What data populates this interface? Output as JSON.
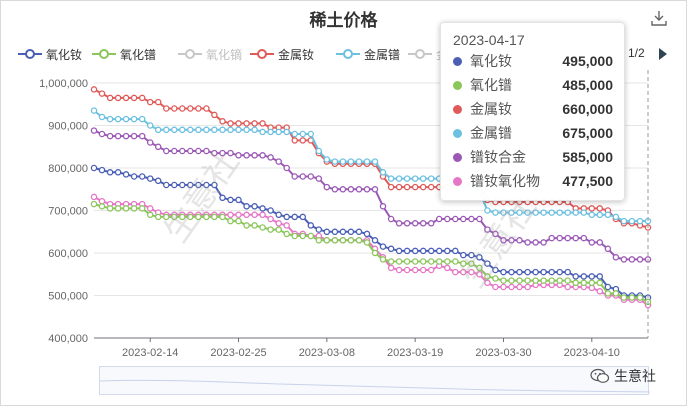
{
  "page": {
    "title": "稀土价格",
    "pager": "1/2",
    "brand": "生意社",
    "watermark": "生意社",
    "icons": {
      "download": "download-icon",
      "next": "triangle-right-icon",
      "brand": "wechat-icon"
    }
  },
  "legend": [
    {
      "name": "氧化钕",
      "color": "#4a5fb5",
      "active": true
    },
    {
      "name": "氧化镨",
      "color": "#8bc65a",
      "active": true
    },
    {
      "name": "氧化镝",
      "color": "#c7c7c7",
      "active": false
    },
    {
      "name": "金属钕",
      "color": "#e05a5a",
      "active": true
    },
    {
      "name": "金属镨",
      "color": "#6cc0e0",
      "active": true
    },
    {
      "name": "金",
      "color": "#c7c7c7",
      "active": false
    }
  ],
  "tooltip": {
    "date": "2023-04-17",
    "rows": [
      {
        "name": "氧化钕",
        "value": "495,000",
        "color": "#4a5fb5"
      },
      {
        "name": "氧化镨",
        "value": "485,000",
        "color": "#8bc65a"
      },
      {
        "name": "金属钕",
        "value": "660,000",
        "color": "#e05a5a"
      },
      {
        "name": "金属镨",
        "value": "675,000",
        "color": "#6cc0e0"
      },
      {
        "name": "镨钕合金",
        "value": "585,000",
        "color": "#9b59b6"
      },
      {
        "name": "镨钕氧化物",
        "value": "477,500",
        "color": "#e676c6"
      }
    ]
  },
  "chart_data": {
    "type": "line",
    "title": "稀土价格",
    "x_start": "2023-02-07",
    "x_end": "2023-04-17",
    "xlim": [
      "2023-02-07",
      "2023-04-17"
    ],
    "ylim": [
      400000,
      1000000
    ],
    "yticks": [
      400000,
      500000,
      600000,
      700000,
      800000,
      900000,
      1000000
    ],
    "ytick_labels": [
      "400,000",
      "500,000",
      "600,000",
      "700,000",
      "800,000",
      "900,000",
      "1,000,000"
    ],
    "xticks": [
      "2023-02-14",
      "2023-02-25",
      "2023-03-08",
      "2023-03-19",
      "2023-03-30",
      "2023-04-10"
    ],
    "grid": true,
    "series": [
      {
        "name": "金属钕",
        "color": "#e05a5a",
        "points": [
          [
            "2023-02-07",
            985000
          ],
          [
            "2023-02-08",
            975000
          ],
          [
            "2023-02-09",
            965000
          ],
          [
            "2023-02-13",
            965000
          ],
          [
            "2023-02-14",
            955000
          ],
          [
            "2023-02-15",
            955000
          ],
          [
            "2023-02-16",
            940000
          ],
          [
            "2023-02-21",
            940000
          ],
          [
            "2023-02-22",
            925000
          ],
          [
            "2023-02-23",
            910000
          ],
          [
            "2023-02-24",
            905000
          ],
          [
            "2023-02-28",
            905000
          ],
          [
            "2023-03-01",
            895000
          ],
          [
            "2023-03-03",
            895000
          ],
          [
            "2023-03-04",
            865000
          ],
          [
            "2023-03-06",
            865000
          ],
          [
            "2023-03-07",
            835000
          ],
          [
            "2023-03-08",
            815000
          ],
          [
            "2023-03-09",
            810000
          ],
          [
            "2023-03-14",
            810000
          ],
          [
            "2023-03-15",
            780000
          ],
          [
            "2023-03-16",
            755000
          ],
          [
            "2023-03-23",
            755000
          ],
          [
            "2023-03-24",
            760000
          ],
          [
            "2023-03-27",
            760000
          ],
          [
            "2023-03-28",
            725000
          ],
          [
            "2023-03-29",
            720000
          ],
          [
            "2023-04-07",
            720000
          ],
          [
            "2023-04-08",
            705000
          ],
          [
            "2023-04-12",
            700000
          ],
          [
            "2023-04-13",
            680000
          ],
          [
            "2023-04-14",
            670000
          ],
          [
            "2023-04-16",
            665000
          ],
          [
            "2023-04-17",
            660000
          ]
        ]
      },
      {
        "name": "金属镨",
        "color": "#6cc0e0",
        "points": [
          [
            "2023-02-07",
            935000
          ],
          [
            "2023-02-08",
            920000
          ],
          [
            "2023-02-09",
            915000
          ],
          [
            "2023-02-13",
            915000
          ],
          [
            "2023-02-14",
            900000
          ],
          [
            "2023-02-15",
            890000
          ],
          [
            "2023-02-24",
            890000
          ],
          [
            "2023-02-27",
            890000
          ],
          [
            "2023-02-28",
            885000
          ],
          [
            "2023-03-03",
            885000
          ],
          [
            "2023-03-04",
            880000
          ],
          [
            "2023-03-06",
            880000
          ],
          [
            "2023-03-07",
            840000
          ],
          [
            "2023-03-08",
            820000
          ],
          [
            "2023-03-09",
            815000
          ],
          [
            "2023-03-14",
            815000
          ],
          [
            "2023-03-15",
            790000
          ],
          [
            "2023-03-16",
            775000
          ],
          [
            "2023-03-23",
            775000
          ],
          [
            "2023-03-24",
            760000
          ],
          [
            "2023-03-27",
            745000
          ],
          [
            "2023-03-28",
            700000
          ],
          [
            "2023-03-29",
            695000
          ],
          [
            "2023-04-08",
            695000
          ],
          [
            "2023-04-10",
            690000
          ],
          [
            "2023-04-13",
            685000
          ],
          [
            "2023-04-14",
            675000
          ],
          [
            "2023-04-17",
            675000
          ]
        ]
      },
      {
        "name": "镨钕合金",
        "color": "#9b59b6",
        "points": [
          [
            "2023-02-07",
            888000
          ],
          [
            "2023-02-08",
            880000
          ],
          [
            "2023-02-09",
            875000
          ],
          [
            "2023-02-13",
            875000
          ],
          [
            "2023-02-14",
            860000
          ],
          [
            "2023-02-15",
            850000
          ],
          [
            "2023-02-16",
            840000
          ],
          [
            "2023-02-21",
            840000
          ],
          [
            "2023-02-22",
            835000
          ],
          [
            "2023-02-25",
            830000
          ],
          [
            "2023-02-28",
            830000
          ],
          [
            "2023-03-01",
            825000
          ],
          [
            "2023-03-02",
            815000
          ],
          [
            "2023-03-03",
            800000
          ],
          [
            "2023-03-04",
            780000
          ],
          [
            "2023-03-07",
            775000
          ],
          [
            "2023-03-08",
            755000
          ],
          [
            "2023-03-09",
            750000
          ],
          [
            "2023-03-14",
            750000
          ],
          [
            "2023-03-15",
            710000
          ],
          [
            "2023-03-16",
            680000
          ],
          [
            "2023-03-17",
            670000
          ],
          [
            "2023-03-21",
            670000
          ],
          [
            "2023-03-22",
            680000
          ],
          [
            "2023-03-27",
            680000
          ],
          [
            "2023-03-28",
            655000
          ],
          [
            "2023-03-29",
            645000
          ],
          [
            "2023-03-30",
            630000
          ],
          [
            "2023-04-02",
            625000
          ],
          [
            "2023-04-04",
            625000
          ],
          [
            "2023-04-05",
            635000
          ],
          [
            "2023-04-09",
            635000
          ],
          [
            "2023-04-10",
            625000
          ],
          [
            "2023-04-12",
            610000
          ],
          [
            "2023-04-13",
            590000
          ],
          [
            "2023-04-14",
            585000
          ],
          [
            "2023-04-17",
            585000
          ]
        ]
      },
      {
        "name": "氧化钕",
        "color": "#4a5fb5",
        "points": [
          [
            "2023-02-07",
            800000
          ],
          [
            "2023-02-08",
            795000
          ],
          [
            "2023-02-09",
            790000
          ],
          [
            "2023-02-10",
            790000
          ],
          [
            "2023-02-11",
            785000
          ],
          [
            "2023-02-12",
            780000
          ],
          [
            "2023-02-14",
            775000
          ],
          [
            "2023-02-15",
            770000
          ],
          [
            "2023-02-16",
            760000
          ],
          [
            "2023-02-22",
            760000
          ],
          [
            "2023-02-23",
            730000
          ],
          [
            "2023-02-24",
            725000
          ],
          [
            "2023-02-25",
            725000
          ],
          [
            "2023-02-26",
            710000
          ],
          [
            "2023-02-28",
            705000
          ],
          [
            "2023-03-01",
            700000
          ],
          [
            "2023-03-02",
            690000
          ],
          [
            "2023-03-03",
            685000
          ],
          [
            "2023-03-05",
            685000
          ],
          [
            "2023-03-06",
            665000
          ],
          [
            "2023-03-07",
            655000
          ],
          [
            "2023-03-08",
            650000
          ],
          [
            "2023-03-10",
            650000
          ],
          [
            "2023-03-13",
            645000
          ],
          [
            "2023-03-14",
            630000
          ],
          [
            "2023-03-15",
            615000
          ],
          [
            "2023-03-16",
            610000
          ],
          [
            "2023-03-17",
            605000
          ],
          [
            "2023-03-24",
            605000
          ],
          [
            "2023-03-25",
            595000
          ],
          [
            "2023-03-27",
            590000
          ],
          [
            "2023-03-28",
            575000
          ],
          [
            "2023-03-29",
            560000
          ],
          [
            "2023-03-30",
            555000
          ],
          [
            "2023-04-07",
            555000
          ],
          [
            "2023-04-08",
            545000
          ],
          [
            "2023-04-11",
            545000
          ],
          [
            "2023-04-12",
            520000
          ],
          [
            "2023-04-13",
            515000
          ],
          [
            "2023-04-14",
            500000
          ],
          [
            "2023-04-17",
            495000
          ]
        ]
      },
      {
        "name": "镨钕氧化物",
        "color": "#e676c6",
        "points": [
          [
            "2023-02-07",
            732000
          ],
          [
            "2023-02-08",
            722000
          ],
          [
            "2023-02-09",
            715000
          ],
          [
            "2023-02-13",
            715000
          ],
          [
            "2023-02-14",
            705000
          ],
          [
            "2023-02-15",
            695000
          ],
          [
            "2023-02-16",
            690000
          ],
          [
            "2023-02-21",
            690000
          ],
          [
            "2023-02-22",
            690000
          ],
          [
            "2023-02-28",
            690000
          ],
          [
            "2023-03-01",
            680000
          ],
          [
            "2023-03-02",
            670000
          ],
          [
            "2023-03-03",
            665000
          ],
          [
            "2023-03-04",
            645000
          ],
          [
            "2023-03-06",
            640000
          ],
          [
            "2023-03-08",
            630000
          ],
          [
            "2023-03-13",
            630000
          ],
          [
            "2023-03-14",
            610000
          ],
          [
            "2023-03-15",
            590000
          ],
          [
            "2023-03-16",
            565000
          ],
          [
            "2023-03-17",
            560000
          ],
          [
            "2023-03-21",
            560000
          ],
          [
            "2023-03-22",
            570000
          ],
          [
            "2023-03-23",
            565000
          ],
          [
            "2023-03-24",
            555000
          ],
          [
            "2023-03-27",
            550000
          ],
          [
            "2023-03-28",
            530000
          ],
          [
            "2023-03-29",
            520000
          ],
          [
            "2023-04-02",
            520000
          ],
          [
            "2023-04-03",
            525000
          ],
          [
            "2023-04-06",
            525000
          ],
          [
            "2023-04-07",
            520000
          ],
          [
            "2023-04-10",
            518000
          ],
          [
            "2023-04-11",
            510000
          ],
          [
            "2023-04-12",
            500000
          ],
          [
            "2023-04-14",
            490000
          ],
          [
            "2023-04-17",
            477500
          ]
        ]
      },
      {
        "name": "氧化镨",
        "color": "#8bc65a",
        "points": [
          [
            "2023-02-07",
            715000
          ],
          [
            "2023-02-08",
            710000
          ],
          [
            "2023-02-09",
            705000
          ],
          [
            "2023-02-13",
            705000
          ],
          [
            "2023-02-14",
            690000
          ],
          [
            "2023-02-15",
            685000
          ],
          [
            "2023-02-23",
            685000
          ],
          [
            "2023-02-24",
            675000
          ],
          [
            "2023-02-25",
            675000
          ],
          [
            "2023-02-26",
            665000
          ],
          [
            "2023-02-28",
            660000
          ],
          [
            "2023-03-01",
            655000
          ],
          [
            "2023-03-03",
            645000
          ],
          [
            "2023-03-04",
            640000
          ],
          [
            "2023-03-07",
            630000
          ],
          [
            "2023-03-08",
            630000
          ],
          [
            "2023-03-11",
            630000
          ],
          [
            "2023-03-13",
            625000
          ],
          [
            "2023-03-14",
            600000
          ],
          [
            "2023-03-15",
            585000
          ],
          [
            "2023-03-16",
            580000
          ],
          [
            "2023-03-24",
            580000
          ],
          [
            "2023-03-25",
            575000
          ],
          [
            "2023-03-27",
            565000
          ],
          [
            "2023-03-28",
            545000
          ],
          [
            "2023-03-29",
            540000
          ],
          [
            "2023-03-30",
            535000
          ],
          [
            "2023-04-07",
            535000
          ],
          [
            "2023-04-08",
            530000
          ],
          [
            "2023-04-11",
            530000
          ],
          [
            "2023-04-12",
            505000
          ],
          [
            "2023-04-14",
            495000
          ],
          [
            "2023-04-17",
            485000
          ]
        ]
      }
    ]
  }
}
